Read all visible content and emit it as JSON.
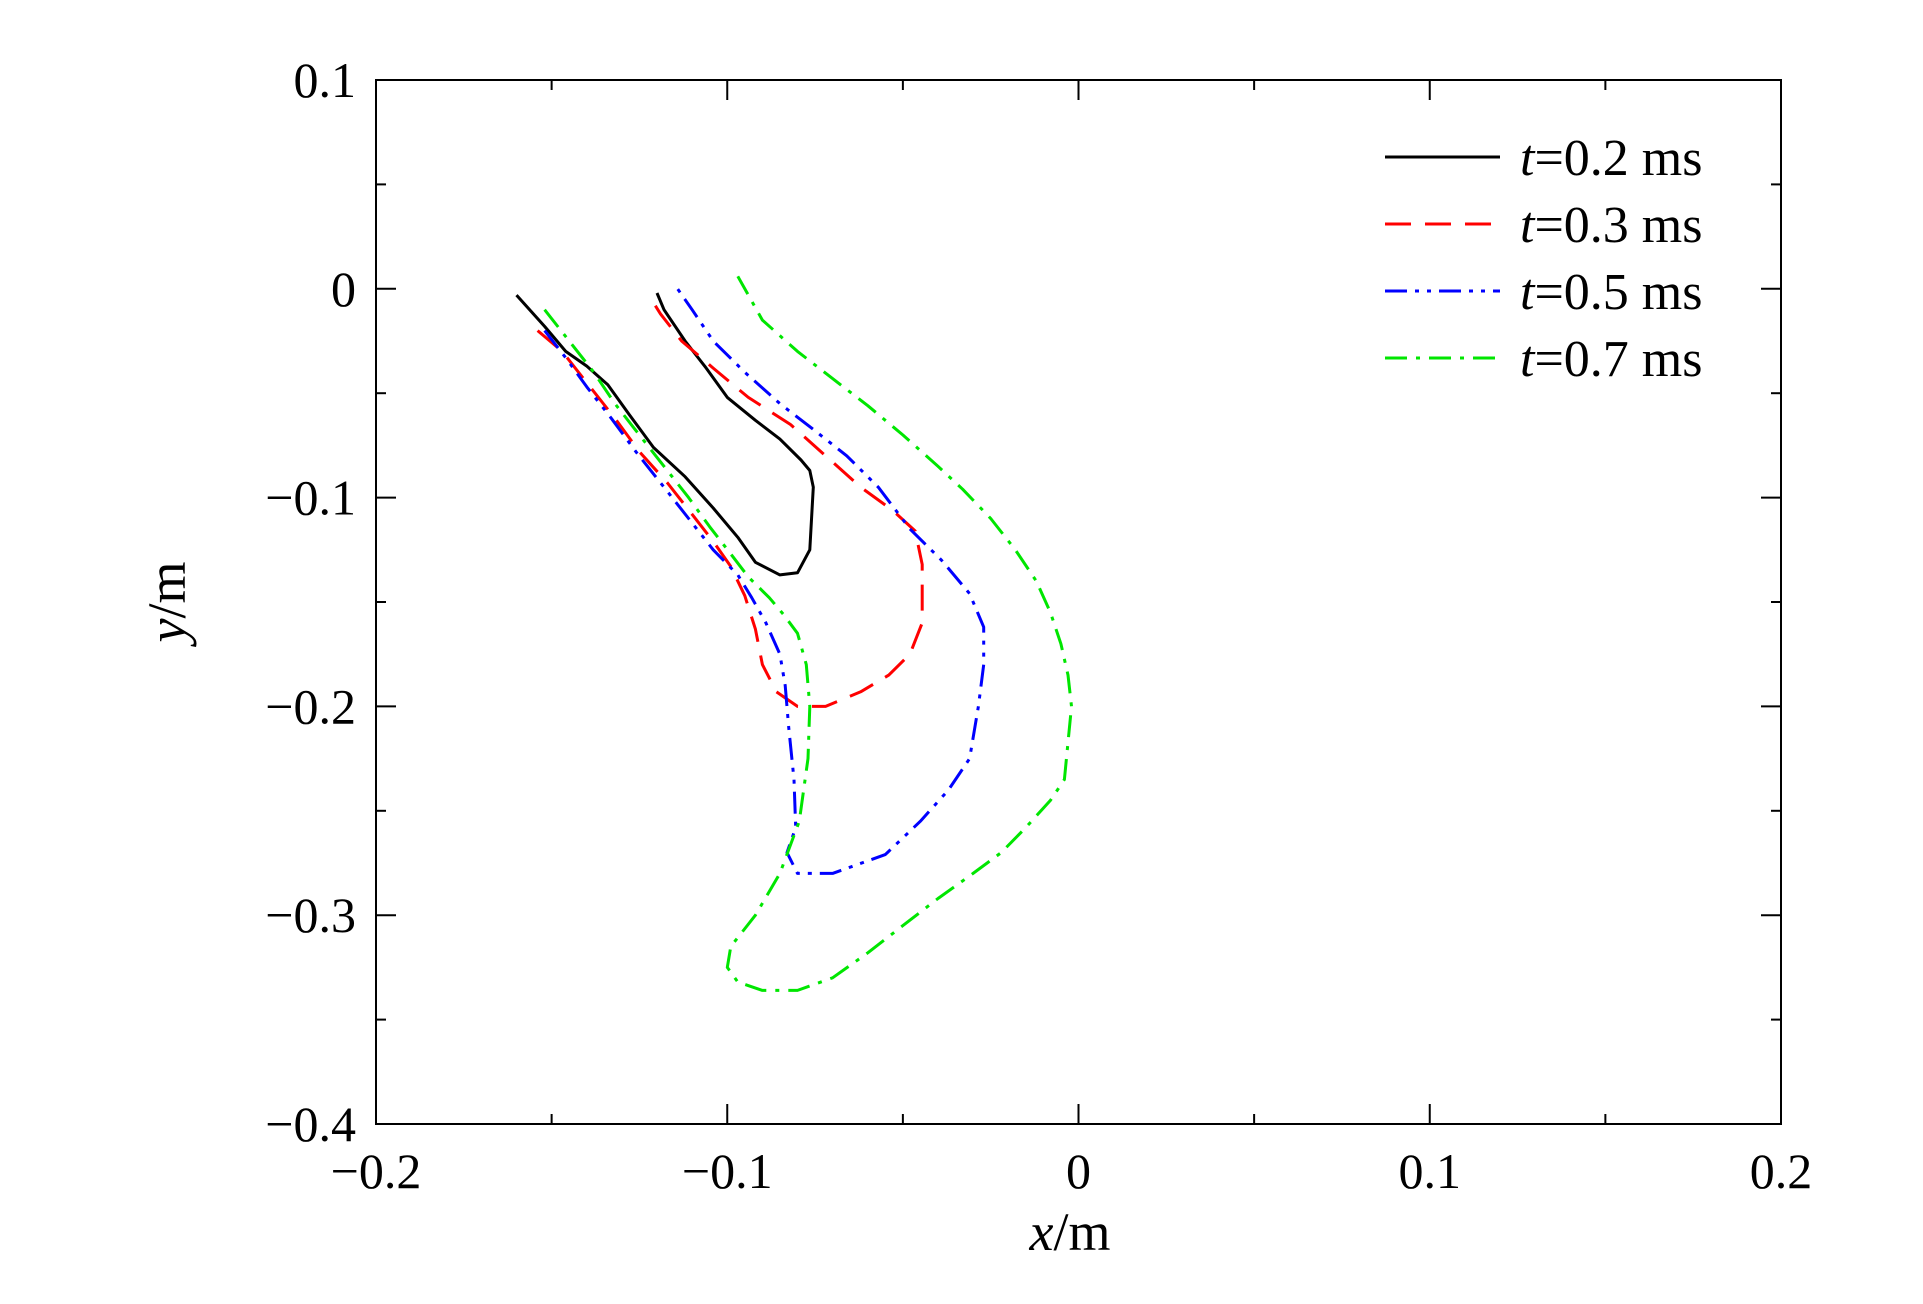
{
  "chart_data": {
    "type": "line",
    "xlabel": {
      "var": "x",
      "unit": "/m"
    },
    "ylabel": {
      "var": "y",
      "unit": "/m"
    },
    "xlim": [
      -0.2,
      0.2
    ],
    "ylim": [
      -0.4,
      0.1
    ],
    "xticks": [
      -0.2,
      -0.1,
      0,
      0.1,
      0.2
    ],
    "xtick_labels": [
      "−0.2",
      "−0.1",
      "0",
      "0.1",
      "0.2"
    ],
    "yticks": [
      0.1,
      0,
      -0.1,
      -0.2,
      -0.3,
      -0.4
    ],
    "ytick_labels": [
      "0.1",
      "0",
      "−0.1",
      "−0.2",
      "−0.3",
      "−0.4"
    ],
    "grid": false,
    "legend_position": "top-right",
    "series": [
      {
        "name": "t=0.2 ms",
        "label_var": "t",
        "label_rest": "=0.2 ms",
        "color": "#000000",
        "style": "solid",
        "x": [
          -0.16,
          -0.152,
          -0.146,
          -0.14,
          -0.134,
          -0.128,
          -0.121,
          -0.112,
          -0.104,
          -0.097,
          -0.092,
          -0.085,
          -0.08,
          -0.0765,
          -0.0755,
          -0.0765,
          -0.079,
          -0.085,
          -0.092,
          -0.1,
          -0.106,
          -0.112,
          -0.118,
          -0.12
        ],
        "y": [
          -0.003,
          -0.018,
          -0.03,
          -0.037,
          -0.046,
          -0.06,
          -0.076,
          -0.09,
          -0.105,
          -0.119,
          -0.131,
          -0.137,
          -0.136,
          -0.125,
          -0.095,
          -0.087,
          -0.082,
          -0.072,
          -0.063,
          -0.052,
          -0.038,
          -0.025,
          -0.01,
          -0.002
        ]
      },
      {
        "name": "t=0.3 ms",
        "label_var": "t",
        "label_rest": "=0.3 ms",
        "color": "#ff0000",
        "style": "dashed",
        "x": [
          -0.154,
          -0.147,
          -0.14,
          -0.132,
          -0.125,
          -0.117,
          -0.11,
          -0.104,
          -0.099,
          -0.095,
          -0.092,
          -0.09,
          -0.086,
          -0.08,
          -0.072,
          -0.062,
          -0.054,
          -0.048,
          -0.0445,
          -0.0445,
          -0.0465,
          -0.053,
          -0.062,
          -0.072,
          -0.082,
          -0.094,
          -0.104,
          -0.113,
          -0.119,
          -0.122
        ],
        "y": [
          -0.02,
          -0.03,
          -0.045,
          -0.062,
          -0.078,
          -0.093,
          -0.108,
          -0.121,
          -0.133,
          -0.147,
          -0.163,
          -0.18,
          -0.193,
          -0.2,
          -0.2,
          -0.193,
          -0.185,
          -0.175,
          -0.16,
          -0.132,
          -0.116,
          -0.106,
          -0.095,
          -0.08,
          -0.065,
          -0.052,
          -0.038,
          -0.025,
          -0.012,
          -0.004
        ]
      },
      {
        "name": "t=0.5 ms",
        "label_var": "t",
        "label_rest": "=0.5 ms",
        "color": "#0000ff",
        "style": "dashdotdot",
        "x": [
          -0.152,
          -0.146,
          -0.14,
          -0.133,
          -0.126,
          -0.118,
          -0.111,
          -0.104,
          -0.097,
          -0.093,
          -0.089,
          -0.085,
          -0.0835,
          -0.0825,
          -0.081,
          -0.0805,
          -0.083,
          -0.08,
          -0.07,
          -0.055,
          -0.045,
          -0.037,
          -0.031,
          -0.0285,
          -0.027,
          -0.027,
          -0.031,
          -0.039,
          -0.048,
          -0.057,
          -0.066,
          -0.075,
          -0.085,
          -0.095,
          -0.104,
          -0.11,
          -0.115
        ],
        "y": [
          -0.02,
          -0.033,
          -0.047,
          -0.062,
          -0.078,
          -0.095,
          -0.11,
          -0.125,
          -0.137,
          -0.148,
          -0.16,
          -0.175,
          -0.19,
          -0.21,
          -0.235,
          -0.258,
          -0.27,
          -0.28,
          -0.28,
          -0.271,
          -0.255,
          -0.24,
          -0.225,
          -0.2,
          -0.18,
          -0.162,
          -0.146,
          -0.13,
          -0.115,
          -0.095,
          -0.08,
          -0.068,
          -0.055,
          -0.04,
          -0.025,
          -0.01,
          0.002
        ]
      },
      {
        "name": "t=0.7 ms",
        "label_var": "t",
        "label_rest": "=0.7 ms",
        "color": "#00e600",
        "style": "dashdot",
        "x": [
          -0.152,
          -0.145,
          -0.138,
          -0.132,
          -0.125,
          -0.118,
          -0.111,
          -0.105,
          -0.099,
          -0.094,
          -0.088,
          -0.084,
          -0.08,
          -0.0775,
          -0.0765,
          -0.077,
          -0.0795,
          -0.085,
          -0.092,
          -0.099,
          -0.1,
          -0.097,
          -0.09,
          -0.08,
          -0.07,
          -0.06,
          -0.05,
          -0.04,
          -0.03,
          -0.022,
          -0.015,
          -0.008,
          -0.004,
          -0.002,
          -0.003,
          -0.005,
          -0.008,
          -0.012,
          -0.018,
          -0.025,
          -0.033,
          -0.04,
          -0.05,
          -0.06,
          -0.07,
          -0.08,
          -0.09,
          -0.097
        ],
        "y": [
          -0.01,
          -0.025,
          -0.04,
          -0.055,
          -0.07,
          -0.085,
          -0.1,
          -0.114,
          -0.127,
          -0.138,
          -0.148,
          -0.156,
          -0.165,
          -0.18,
          -0.2,
          -0.225,
          -0.255,
          -0.28,
          -0.3,
          -0.315,
          -0.325,
          -0.332,
          -0.336,
          -0.336,
          -0.33,
          -0.318,
          -0.305,
          -0.292,
          -0.28,
          -0.27,
          -0.258,
          -0.245,
          -0.235,
          -0.2,
          -0.185,
          -0.17,
          -0.155,
          -0.14,
          -0.125,
          -0.11,
          -0.096,
          -0.085,
          -0.07,
          -0.056,
          -0.043,
          -0.03,
          -0.015,
          0.006
        ]
      }
    ]
  }
}
